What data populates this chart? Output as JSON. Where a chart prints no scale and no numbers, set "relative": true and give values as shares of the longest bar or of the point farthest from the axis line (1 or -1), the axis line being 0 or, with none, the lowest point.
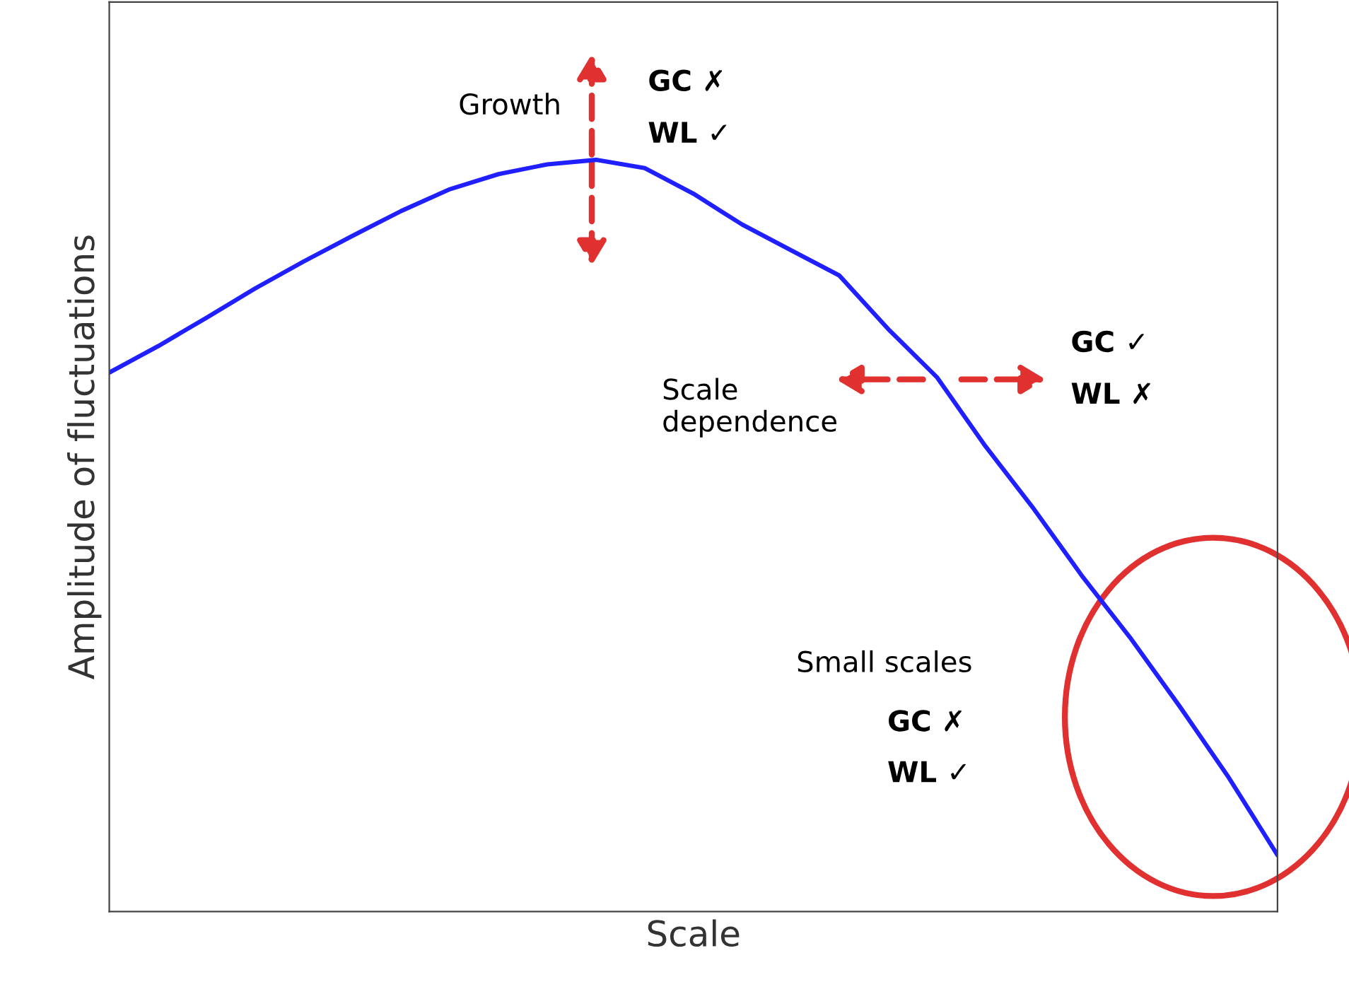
{
  "chart_data": {
    "type": "line",
    "relative": true,
    "xlabel": "Scale",
    "ylabel": "Amplitude of fluctuations",
    "categories": [
      null,
      null,
      null,
      null,
      null,
      null,
      null,
      null,
      null,
      null,
      null,
      null,
      null,
      null,
      null,
      null,
      null,
      null,
      null,
      null,
      null,
      null,
      null,
      null,
      null
    ],
    "series": [
      {
        "color": "#1f1fff",
        "values": [
          0.717,
          0.752,
          0.79,
          0.829,
          0.865,
          0.899,
          0.932,
          0.961,
          0.981,
          0.994,
          1.0,
          0.989,
          0.955,
          0.914,
          0.88,
          0.846,
          0.775,
          0.711,
          0.619,
          0.535,
          0.445,
          0.362,
          0.272,
          0.178,
          0.075
        ]
      }
    ],
    "annotations": [
      "Growth",
      "GC ✗",
      "WL ✓",
      "Scale\ndependence",
      "GC ✓",
      "WL ✗",
      "Small scales",
      "GC ✗",
      "WL ✓"
    ]
  }
}
